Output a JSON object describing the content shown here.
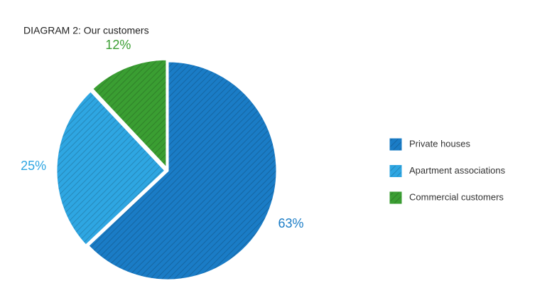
{
  "chart_data": {
    "type": "pie",
    "title": "DIAGRAM 2: Our customers",
    "categories": [
      "Private houses",
      "Apartment associations",
      "Commercial customers"
    ],
    "values": [
      63,
      25,
      12
    ],
    "value_labels": [
      "63%",
      "25%",
      "12%"
    ],
    "colors": [
      "#1a7cc6",
      "#2ea6e2",
      "#3a9e32"
    ]
  }
}
